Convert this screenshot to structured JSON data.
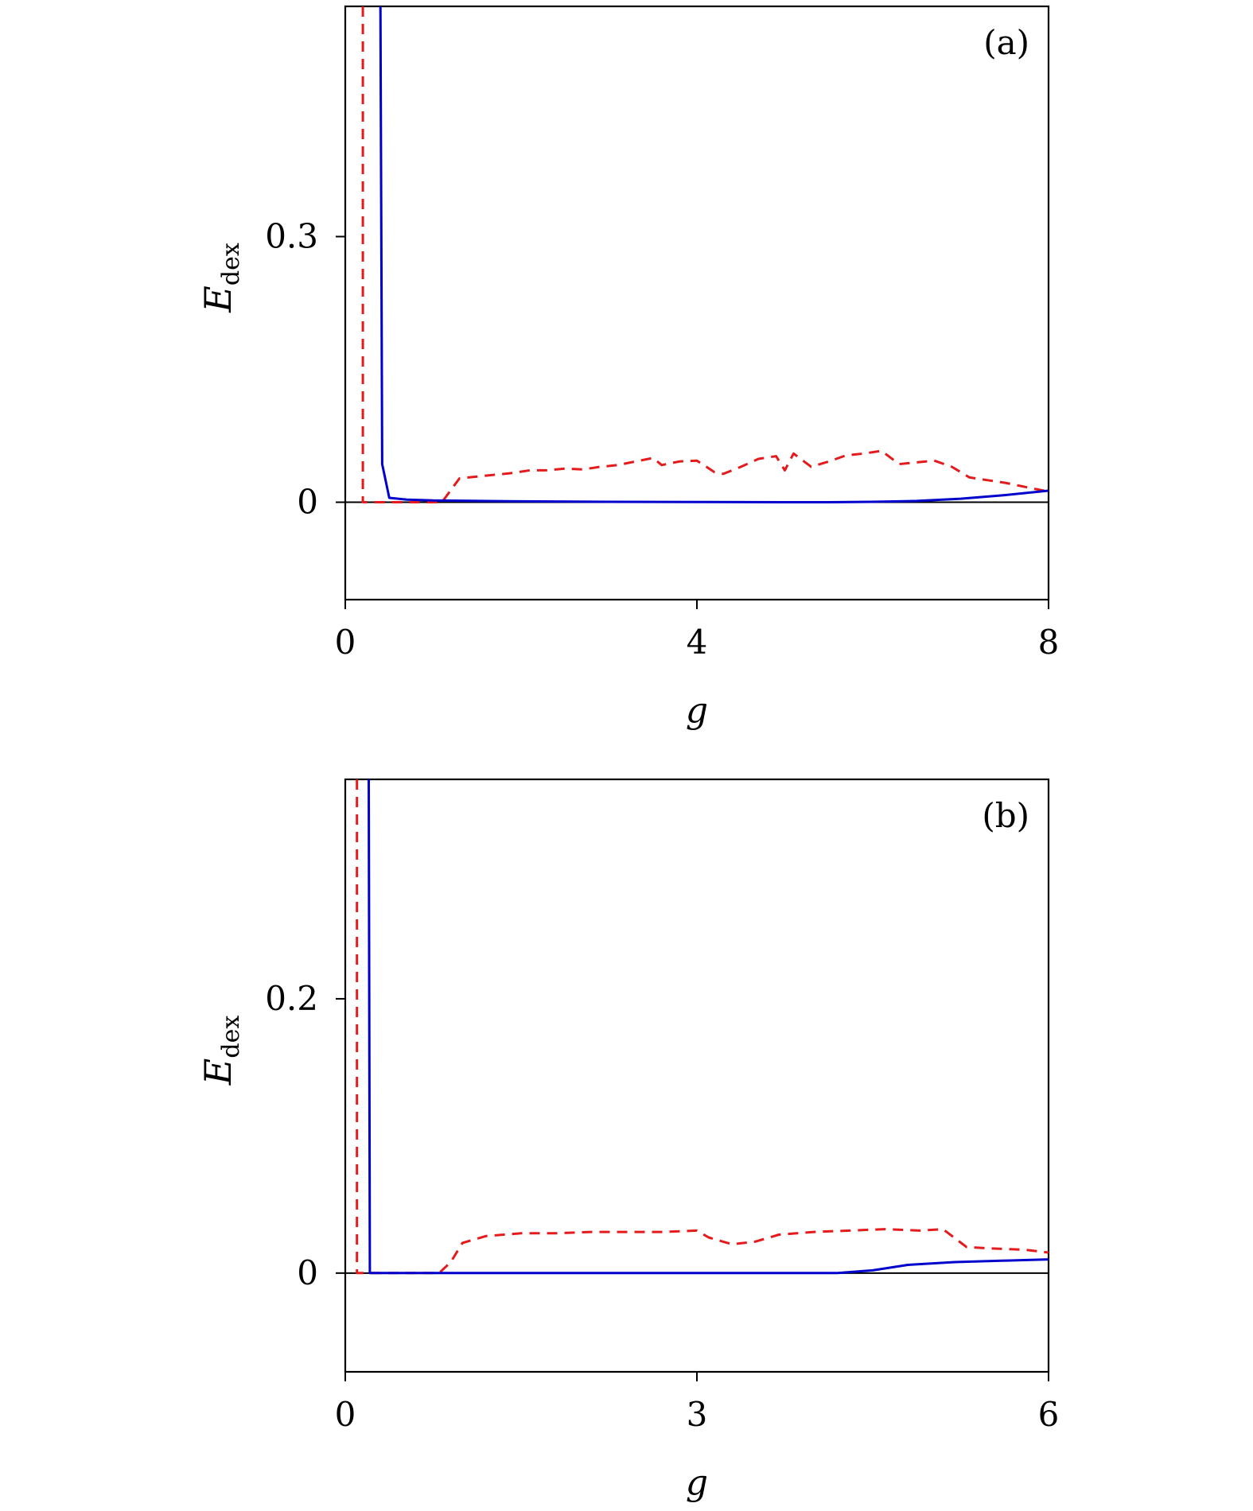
{
  "chart_data": [
    {
      "type": "line",
      "panel_label": "(a)",
      "xlabel": "g",
      "ylabel": "E",
      "ylabel_sub": "dex",
      "xlim": [
        0,
        8
      ],
      "ylim": [
        -0.11,
        0.56
      ],
      "xticks": [
        0,
        4,
        8
      ],
      "yticks": [
        0,
        0.3
      ],
      "xtick_labels": [
        "0",
        "4",
        "8"
      ],
      "ytick_labels": [
        "0",
        "0.3"
      ],
      "zero_line": true,
      "grid": false,
      "series": [
        {
          "color": "#e41a1c",
          "style": "dashed",
          "x": [
            0.2,
            0.2,
            0.2,
            0.4,
            0.6,
            0.8,
            1.0,
            1.1,
            1.3,
            1.5,
            1.7,
            1.9,
            2.1,
            2.3,
            2.5,
            2.7,
            2.9,
            3.1,
            3.3,
            3.5,
            3.6,
            3.8,
            4.0,
            4.2,
            4.3,
            4.5,
            4.7,
            4.9,
            5.0,
            5.1,
            5.3,
            5.5,
            5.7,
            5.9,
            6.1,
            6.3,
            6.5,
            6.7,
            6.9,
            7.1,
            7.3,
            7.5,
            7.7,
            8.0
          ],
          "y": [
            0.56,
            0.0,
            0.0,
            0.0,
            0.0,
            0.0,
            0.0,
            0.0,
            0.027,
            0.029,
            0.031,
            0.033,
            0.036,
            0.036,
            0.038,
            0.037,
            0.04,
            0.042,
            0.046,
            0.05,
            0.042,
            0.046,
            0.047,
            0.034,
            0.032,
            0.04,
            0.049,
            0.052,
            0.036,
            0.055,
            0.04,
            0.046,
            0.053,
            0.055,
            0.058,
            0.043,
            0.045,
            0.047,
            0.04,
            0.028,
            0.025,
            0.022,
            0.018,
            0.012
          ]
        },
        {
          "color": "#0000cc",
          "style": "solid",
          "x": [
            0.4,
            0.42,
            0.5,
            0.7,
            1.0,
            2.0,
            3.0,
            4.0,
            5.0,
            5.5,
            6.0,
            6.5,
            7.0,
            7.5,
            8.0
          ],
          "y": [
            0.56,
            0.043,
            0.005,
            0.003,
            0.002,
            0.001,
            0.0005,
            0.0003,
            0.0,
            0.0,
            0.0005,
            0.0015,
            0.004,
            0.008,
            0.013
          ]
        }
      ]
    },
    {
      "type": "line",
      "panel_label": "(b)",
      "xlabel": "g",
      "ylabel": "E",
      "ylabel_sub": "dex",
      "xlim": [
        0,
        6
      ],
      "ylim": [
        -0.072,
        0.36
      ],
      "xticks": [
        0,
        3,
        6
      ],
      "yticks": [
        0,
        0.2
      ],
      "xtick_labels": [
        "0",
        "3",
        "6"
      ],
      "ytick_labels": [
        "0",
        "0.2"
      ],
      "zero_line": true,
      "grid": false,
      "series": [
        {
          "color": "#e41a1c",
          "style": "dashed",
          "x": [
            0.1,
            0.1,
            0.2,
            0.4,
            0.6,
            0.8,
            0.9,
            1.0,
            1.2,
            1.5,
            1.8,
            2.1,
            2.4,
            2.7,
            3.0,
            3.1,
            3.3,
            3.5,
            3.7,
            4.0,
            4.3,
            4.6,
            4.9,
            5.1,
            5.3,
            5.5,
            5.8,
            6.0
          ],
          "y": [
            0.36,
            0.0,
            0.0,
            0.0,
            0.0,
            0.0,
            0.008,
            0.022,
            0.027,
            0.029,
            0.029,
            0.03,
            0.03,
            0.03,
            0.031,
            0.026,
            0.021,
            0.023,
            0.028,
            0.03,
            0.031,
            0.032,
            0.031,
            0.032,
            0.019,
            0.018,
            0.017,
            0.015
          ]
        },
        {
          "color": "#0000cc",
          "style": "solid",
          "x": [
            0.2,
            0.21,
            0.5,
            1.0,
            2.0,
            3.0,
            4.0,
            4.2,
            4.5,
            4.8,
            5.2,
            5.6,
            6.0
          ],
          "y": [
            0.36,
            0.0,
            0.0,
            0.0,
            0.0,
            0.0,
            0.0,
            0.0,
            0.002,
            0.006,
            0.008,
            0.009,
            0.01
          ]
        }
      ]
    }
  ]
}
